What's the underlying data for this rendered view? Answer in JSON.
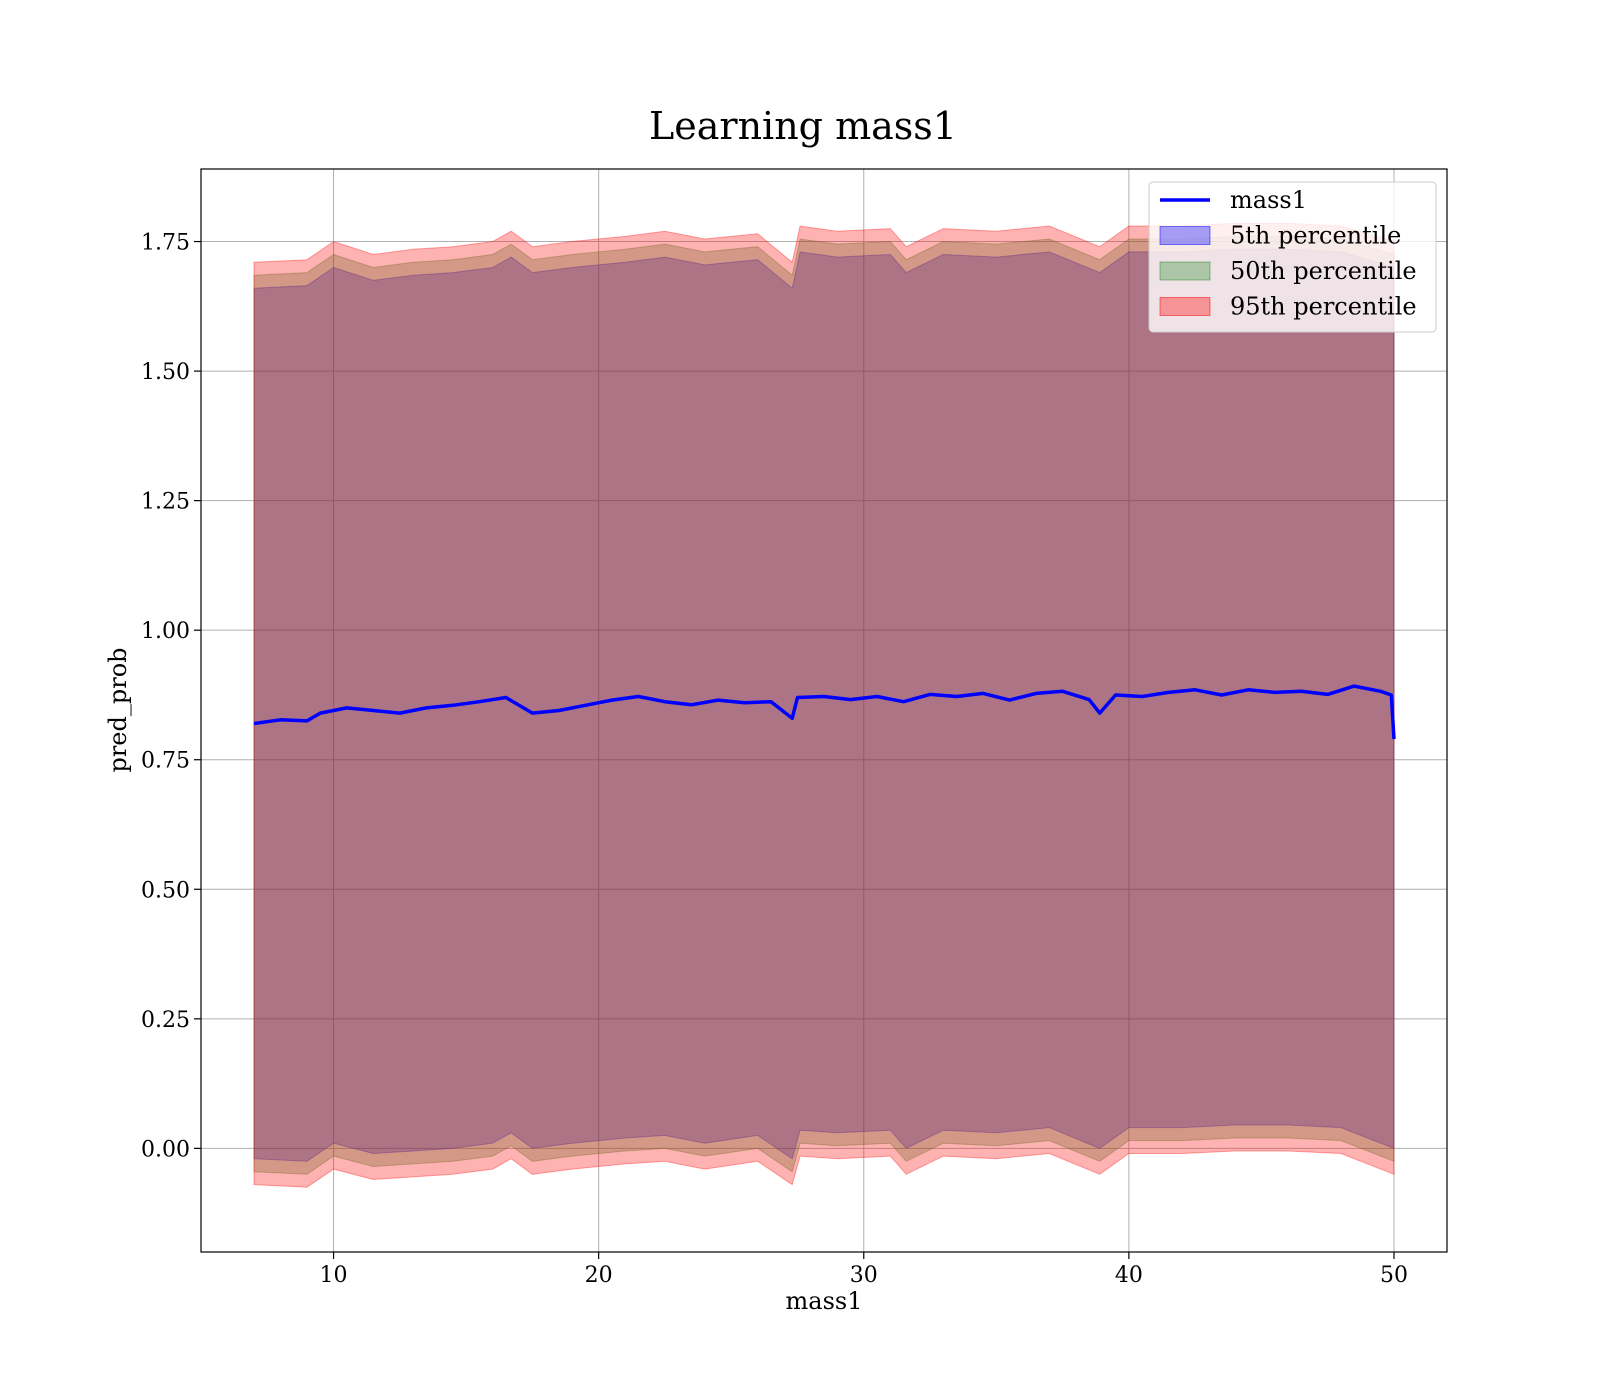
{
  "chart_data": {
    "type": "line",
    "title": "Learning mass1",
    "xlabel": "mass1",
    "ylabel": "pred_prob",
    "xlim": [
      5,
      52
    ],
    "ylim": [
      -0.2,
      1.89
    ],
    "x_range": [
      7,
      50
    ],
    "xticks": [
      10,
      20,
      30,
      40,
      50
    ],
    "xtick_labels": [
      "10",
      "20",
      "30",
      "40",
      "50"
    ],
    "yticks": [
      0.0,
      0.25,
      0.5,
      0.75,
      1.0,
      1.25,
      1.5,
      1.75
    ],
    "ytick_labels": [
      "0.00",
      "0.25",
      "0.50",
      "0.75",
      "1.00",
      "1.25",
      "1.50",
      "1.75"
    ],
    "grid": true,
    "legend_position": "top-right",
    "series": [
      {
        "name": "mass1",
        "kind": "line",
        "color": "#0000ff",
        "x": [
          7.0,
          8.0,
          9.0,
          9.5,
          10.5,
          11.5,
          12.5,
          13.5,
          14.5,
          15.5,
          16.5,
          17.5,
          18.5,
          19.5,
          20.5,
          21.5,
          22.5,
          23.5,
          24.5,
          25.5,
          26.5,
          27.3,
          27.5,
          28.5,
          29.5,
          30.5,
          31.5,
          32.5,
          33.5,
          34.5,
          35.5,
          36.5,
          37.5,
          38.5,
          38.9,
          39.5,
          40.5,
          41.5,
          42.5,
          43.5,
          44.5,
          45.5,
          46.5,
          47.5,
          48.5,
          49.5,
          49.9,
          50.0
        ],
        "y": [
          0.82,
          0.827,
          0.825,
          0.84,
          0.85,
          0.845,
          0.84,
          0.85,
          0.855,
          0.862,
          0.87,
          0.84,
          0.845,
          0.855,
          0.865,
          0.872,
          0.862,
          0.856,
          0.865,
          0.86,
          0.862,
          0.83,
          0.87,
          0.872,
          0.866,
          0.872,
          0.862,
          0.876,
          0.872,
          0.878,
          0.865,
          0.878,
          0.882,
          0.866,
          0.84,
          0.875,
          0.872,
          0.88,
          0.885,
          0.875,
          0.885,
          0.88,
          0.882,
          0.876,
          0.892,
          0.882,
          0.875,
          0.79
        ]
      },
      {
        "name": "5th percentile",
        "kind": "band",
        "color": "#0000ff",
        "x": [
          7.0,
          9.0,
          10.0,
          11.5,
          13.0,
          14.5,
          16.0,
          16.7,
          17.5,
          19.0,
          21.0,
          22.5,
          24.0,
          26.0,
          27.3,
          27.6,
          29.0,
          31.0,
          31.6,
          33.0,
          35.0,
          37.0,
          38.9,
          40.0,
          42.0,
          44.0,
          46.0,
          48.0,
          50.0
        ],
        "upper": [
          1.66,
          1.665,
          1.7,
          1.675,
          1.685,
          1.69,
          1.7,
          1.72,
          1.69,
          1.7,
          1.71,
          1.72,
          1.705,
          1.715,
          1.66,
          1.73,
          1.72,
          1.725,
          1.69,
          1.725,
          1.72,
          1.73,
          1.69,
          1.73,
          1.73,
          1.735,
          1.735,
          1.73,
          1.7
        ],
        "lower": [
          -0.02,
          -0.025,
          0.01,
          -0.01,
          -0.005,
          0.0,
          0.01,
          0.03,
          0.0,
          0.01,
          0.02,
          0.025,
          0.01,
          0.025,
          -0.02,
          0.035,
          0.03,
          0.035,
          0.0,
          0.035,
          0.03,
          0.04,
          0.0,
          0.04,
          0.04,
          0.045,
          0.045,
          0.04,
          0.0
        ]
      },
      {
        "name": "50th percentile",
        "kind": "band",
        "color": "#2e8b2e",
        "x": [
          7.0,
          9.0,
          10.0,
          11.5,
          13.0,
          14.5,
          16.0,
          16.7,
          17.5,
          19.0,
          21.0,
          22.5,
          24.0,
          26.0,
          27.3,
          27.6,
          29.0,
          31.0,
          31.6,
          33.0,
          35.0,
          37.0,
          38.9,
          40.0,
          42.0,
          44.0,
          46.0,
          48.0,
          50.0
        ],
        "upper": [
          1.685,
          1.69,
          1.725,
          1.7,
          1.71,
          1.715,
          1.725,
          1.745,
          1.715,
          1.725,
          1.735,
          1.745,
          1.73,
          1.74,
          1.685,
          1.755,
          1.745,
          1.75,
          1.715,
          1.75,
          1.745,
          1.755,
          1.715,
          1.755,
          1.755,
          1.76,
          1.76,
          1.755,
          1.725
        ],
        "lower": [
          -0.045,
          -0.05,
          -0.015,
          -0.035,
          -0.03,
          -0.025,
          -0.015,
          0.005,
          -0.025,
          -0.015,
          -0.005,
          0.0,
          -0.015,
          0.0,
          -0.045,
          0.01,
          0.005,
          0.01,
          -0.025,
          0.01,
          0.005,
          0.015,
          -0.025,
          0.015,
          0.015,
          0.02,
          0.02,
          0.015,
          -0.025
        ]
      },
      {
        "name": "95th percentile",
        "kind": "band",
        "color": "#ff0000",
        "x": [
          7.0,
          9.0,
          10.0,
          11.5,
          13.0,
          14.5,
          16.0,
          16.7,
          17.5,
          19.0,
          21.0,
          22.5,
          24.0,
          26.0,
          27.3,
          27.6,
          29.0,
          31.0,
          31.6,
          33.0,
          35.0,
          37.0,
          38.9,
          40.0,
          42.0,
          44.0,
          46.0,
          48.0,
          50.0
        ],
        "upper": [
          1.71,
          1.715,
          1.75,
          1.725,
          1.735,
          1.74,
          1.75,
          1.77,
          1.74,
          1.75,
          1.76,
          1.77,
          1.755,
          1.765,
          1.71,
          1.78,
          1.77,
          1.775,
          1.74,
          1.775,
          1.77,
          1.78,
          1.74,
          1.78,
          1.78,
          1.785,
          1.785,
          1.78,
          1.75
        ],
        "lower": [
          -0.07,
          -0.075,
          -0.04,
          -0.06,
          -0.055,
          -0.05,
          -0.04,
          -0.02,
          -0.05,
          -0.04,
          -0.03,
          -0.025,
          -0.04,
          -0.025,
          -0.07,
          -0.015,
          -0.02,
          -0.015,
          -0.05,
          -0.015,
          -0.02,
          -0.01,
          -0.05,
          -0.01,
          -0.01,
          -0.005,
          -0.005,
          -0.01,
          -0.05
        ]
      }
    ]
  }
}
